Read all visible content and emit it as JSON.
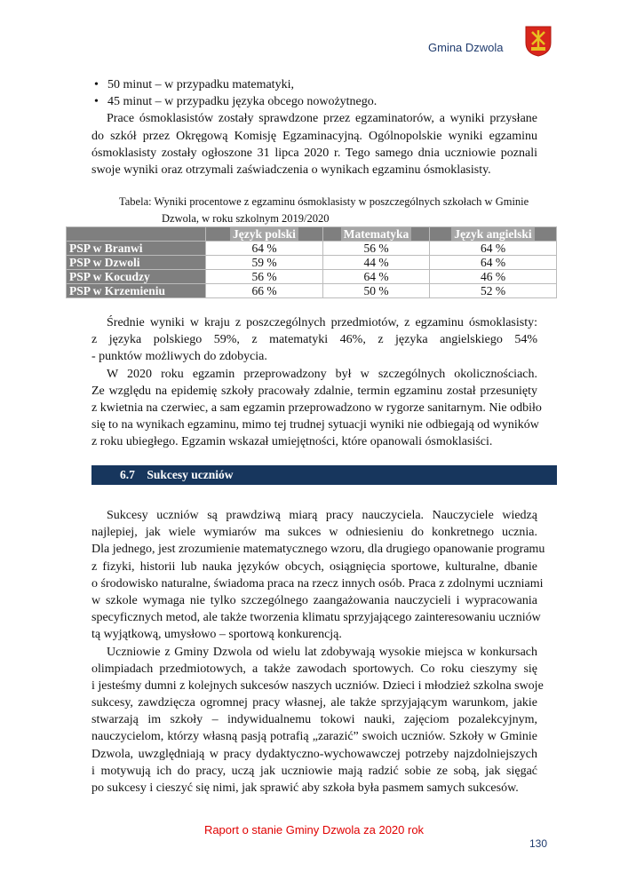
{
  "header": {
    "title": "Gmina Dzwola"
  },
  "intro": {
    "bullets": [
      "50 minut – w przypadku matematyki,",
      "45 minut – w przypadku języka obcego nowożytnego."
    ],
    "lines": [
      "Prace ósmoklasistów zostały sprawdzone przez egzaminatorów, a wyniki przysłane",
      "do szkół przez Okręgową Komisję Egzaminacyjną. Ogólnopolskie wyniki egzaminu",
      "ósmoklasisty zostały ogłoszone 31 lipca 2020 r. Tego samego dnia uczniowie poznali",
      "swoje wyniki oraz otrzymali zaświadczenia o wynikach egzaminu ósmoklasisty."
    ]
  },
  "table": {
    "caption_line1": "Tabela: Wyniki procentowe z egzaminu ósmoklasisty w poszczególnych szkołach w Gminie",
    "caption_line2": "Dzwola, w roku szkolnym 2019/2020",
    "headers": [
      "",
      "Język polski",
      "Matematyka",
      "Język angielski"
    ],
    "rows": [
      [
        "PSP w Branwi",
        "64 %",
        "56 %",
        "64 %"
      ],
      [
        "PSP w Dzwoli",
        "59 %",
        "44 %",
        "64 %"
      ],
      [
        "PSP w Kocudzy",
        "56 %",
        "64 %",
        "46 %"
      ],
      [
        "PSP w Krzemieniu",
        "66 %",
        "50 %",
        "52 %"
      ]
    ]
  },
  "after_table": {
    "lines": [
      "Średnie wyniki w kraju z poszczególnych przedmiotów, z egzaminu ósmoklasisty:",
      "z   języka   polskiego   59%,   z   matematyki   46%,   z   języka   angielskiego   54%",
      " - punktów możliwych do zdobycia.",
      "W 2020 roku egzamin przeprowadzony był w szczególnych okolicznościach.",
      "Ze względu na epidemię szkoły pracowały zdalnie, termin egzaminu został przesunięty",
      "z kwietnia na czerwiec, a sam egzamin przeprowadzono w rygorze sanitarnym. Nie odbiło",
      "się to na wynikach egzaminu, mimo tej trudnej sytuacji wyniki nie odbiegają od wyników",
      "z roku ubiegłego. Egzamin wskazał umiejętności, które opanowali ósmoklasiści."
    ]
  },
  "section": {
    "number": "6.7",
    "title": "Sukcesy uczniów"
  },
  "section_body": {
    "lines": [
      "Sukcesy uczniów są prawdziwą miarą pracy nauczyciela. Nauczyciele wiedzą",
      "najlepiej, jak wiele wymiarów ma sukces w odniesieniu do konkretnego ucznia.",
      "Dla jednego, jest zrozumienie matematycznego wzoru, dla drugiego opanowanie programu",
      "z fizyki, historii lub nauka języków obcych, osiągnięcia sportowe, kulturalne, dbanie",
      "o środowisko naturalne, świadoma praca na rzecz innych osób. Praca z zdolnymi uczniami",
      "w szkole wymaga nie tylko szczególnego zaangażowania nauczycieli i wypracowania",
      "specyficznych metod, ale także tworzenia klimatu sprzyjającego zainteresowaniu uczniów",
      "tą wyjątkową, umysłowo – sportową konkurencją.",
      "Uczniowie z Gminy Dzwola od wielu lat zdobywają wysokie miejsca w konkursach",
      "olimpiadach przedmiotowych, a także zawodach sportowych. Co roku cieszymy się",
      "i jesteśmy dumni z kolejnych sukcesów naszych uczniów. Dzieci i młodzież szkolna swoje",
      "sukcesy, zawdzięcza ogromnej pracy własnej, ale także sprzyjającym warunkom, jakie",
      "stwarzają im szkoły – indywidualnemu tokowi nauki, zajęciom pozalekcyjnym,",
      "nauczycielom, którzy własną pasją potrafią „zarazić” swoich uczniów. Szkoły w Gminie",
      "Dzwola, uwzględniają w pracy dydaktyczno-wychowawczej potrzeby najzdolniejszych",
      "i motywują ich do pracy, uczą jak uczniowie mają radzić sobie ze sobą, jak sięgać",
      "po sukcesy i cieszyć się nimi, jak sprawić aby szkoła była pasmem samych sukcesów."
    ]
  },
  "footer": {
    "title": "Raport o stanie Gminy Dzwola za 2020 rok",
    "page_number": "130"
  },
  "colors": {
    "header": "#1f3b6e",
    "footer": "#e00000",
    "section_bar": "#17365d",
    "table_header": "#7f7f7f"
  }
}
